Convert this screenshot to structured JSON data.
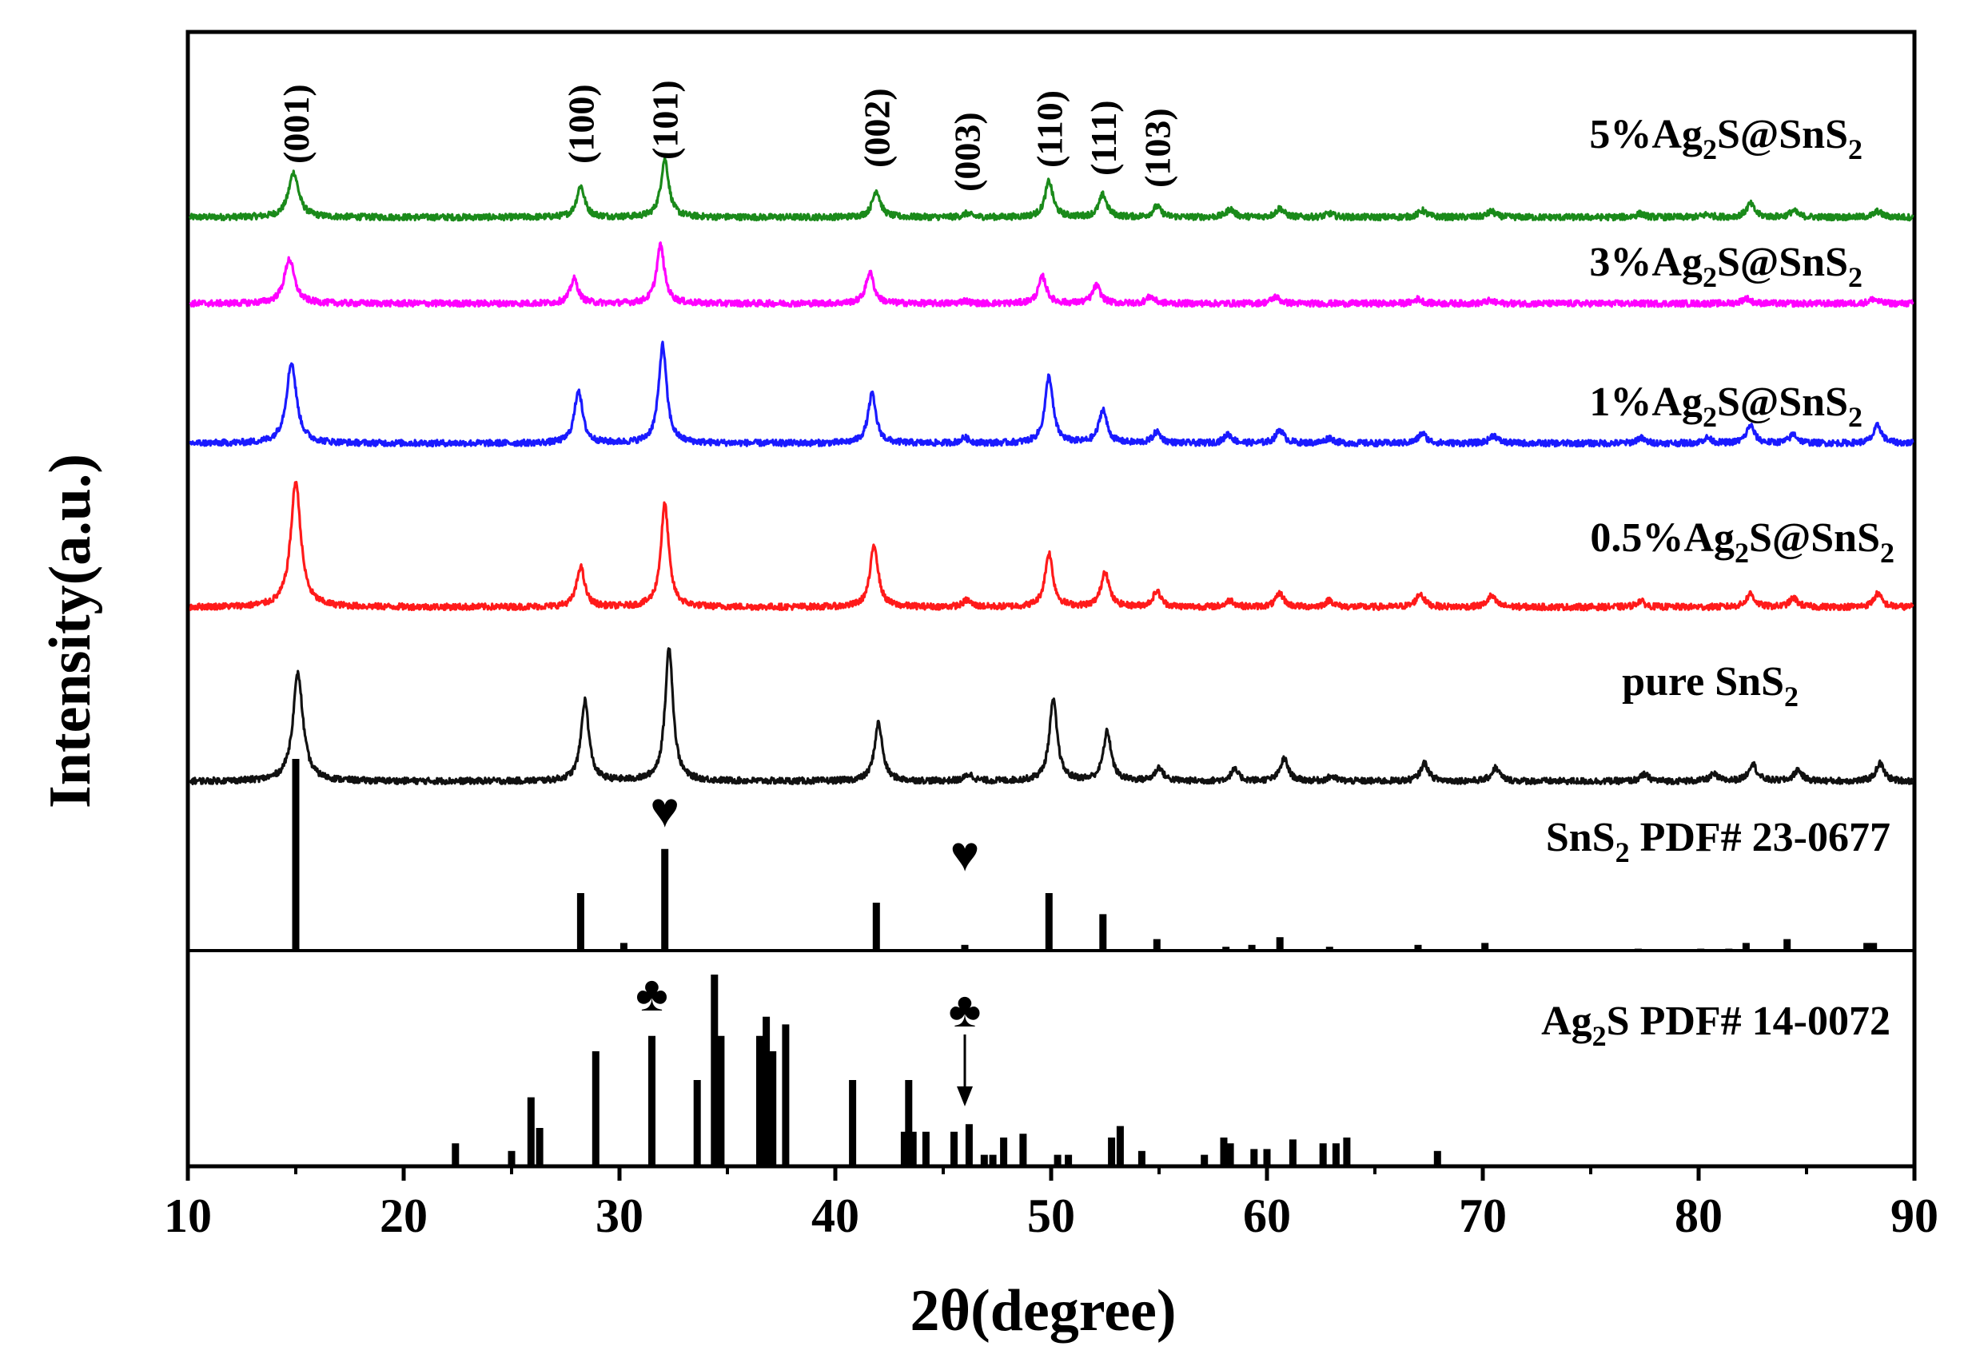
{
  "chart_data": {
    "type": "line",
    "title": "",
    "xlabel": "2θ(degree)",
    "ylabel": "Intensity(a.u.)",
    "xlim": [
      10,
      90
    ],
    "xticks": [
      10,
      20,
      30,
      40,
      50,
      60,
      70,
      80,
      90
    ],
    "series": [
      {
        "name": "5%Ag2S@SnS2",
        "label_parts": [
          "5%Ag",
          "2",
          "S@SnS",
          "2"
        ],
        "color": "#1a8a1a",
        "peaks": [
          [
            14.9,
            1.0
          ],
          [
            28.2,
            0.7
          ],
          [
            32.1,
            1.3
          ],
          [
            41.9,
            0.6
          ],
          [
            46.1,
            0.08
          ],
          [
            49.9,
            0.8
          ],
          [
            52.4,
            0.5
          ],
          [
            54.9,
            0.24
          ],
          [
            58.3,
            0.18
          ],
          [
            60.6,
            0.2
          ],
          [
            62.9,
            0.08
          ],
          [
            67.2,
            0.15
          ],
          [
            70.4,
            0.13
          ],
          [
            77.3,
            0.08
          ],
          [
            80.4,
            0.06
          ],
          [
            82.4,
            0.3
          ],
          [
            84.4,
            0.14
          ],
          [
            88.3,
            0.13
          ]
        ]
      },
      {
        "name": "3%Ag2S@SnS2",
        "label_parts": [
          "3%Ag",
          "2",
          "S@SnS",
          "2"
        ],
        "color": "#ff00ff",
        "peaks": [
          [
            14.7,
            1.0
          ],
          [
            27.9,
            0.55
          ],
          [
            31.9,
            1.3
          ],
          [
            41.6,
            0.7
          ],
          [
            46.0,
            0.06
          ],
          [
            49.6,
            0.6
          ],
          [
            52.1,
            0.4
          ],
          [
            54.6,
            0.15
          ],
          [
            60.4,
            0.15
          ],
          [
            67.0,
            0.1
          ],
          [
            70.3,
            0.06
          ],
          [
            82.2,
            0.12
          ],
          [
            88.1,
            0.1
          ]
        ]
      },
      {
        "name": "1%Ag2S@SnS2",
        "label_parts": [
          "1%Ag",
          "2",
          "S@SnS",
          "2"
        ],
        "color": "#1a1aff",
        "peaks": [
          [
            14.8,
            1.8
          ],
          [
            28.1,
            1.2
          ],
          [
            32.0,
            2.2
          ],
          [
            41.7,
            1.1
          ],
          [
            46.0,
            0.12
          ],
          [
            49.9,
            1.5
          ],
          [
            52.4,
            0.75
          ],
          [
            54.9,
            0.25
          ],
          [
            58.2,
            0.2
          ],
          [
            60.6,
            0.3
          ],
          [
            62.9,
            0.12
          ],
          [
            67.2,
            0.22
          ],
          [
            70.5,
            0.18
          ],
          [
            77.3,
            0.12
          ],
          [
            80.4,
            0.12
          ],
          [
            82.4,
            0.4
          ],
          [
            84.4,
            0.2
          ],
          [
            88.3,
            0.4
          ]
        ]
      },
      {
        "name": "0.5%Ag2S@SnS2",
        "label_parts": [
          "0.5%Ag",
          "2",
          "S@SnS",
          "2"
        ],
        "color": "#ff1a1a",
        "peaks": [
          [
            15.0,
            2.8
          ],
          [
            28.2,
            0.9
          ],
          [
            32.1,
            2.3
          ],
          [
            41.8,
            1.4
          ],
          [
            46.1,
            0.15
          ],
          [
            49.9,
            1.2
          ],
          [
            52.5,
            0.8
          ],
          [
            54.9,
            0.35
          ],
          [
            58.3,
            0.15
          ],
          [
            60.6,
            0.3
          ],
          [
            62.9,
            0.15
          ],
          [
            67.1,
            0.3
          ],
          [
            70.4,
            0.25
          ],
          [
            77.3,
            0.14
          ],
          [
            82.4,
            0.3
          ],
          [
            84.4,
            0.2
          ],
          [
            88.3,
            0.3
          ]
        ]
      },
      {
        "name": "pure SnS2",
        "label_parts": [
          "pure SnS",
          "2",
          "",
          ""
        ],
        "color": "#111111",
        "peaks": [
          [
            15.1,
            2.4
          ],
          [
            28.4,
            1.8
          ],
          [
            32.3,
            3.0
          ],
          [
            42.0,
            1.3
          ],
          [
            46.2,
            0.15
          ],
          [
            50.1,
            1.8
          ],
          [
            52.6,
            1.1
          ],
          [
            55.0,
            0.3
          ],
          [
            58.5,
            0.25
          ],
          [
            60.8,
            0.5
          ],
          [
            63.0,
            0.1
          ],
          [
            67.3,
            0.4
          ],
          [
            70.6,
            0.3
          ],
          [
            77.5,
            0.15
          ],
          [
            80.7,
            0.15
          ],
          [
            82.5,
            0.4
          ],
          [
            84.6,
            0.25
          ],
          [
            88.4,
            0.4
          ]
        ]
      }
    ],
    "hkl_labels": [
      {
        "text": "(001)",
        "x": 15.0
      },
      {
        "text": "(100)",
        "x": 28.2
      },
      {
        "text": "(101)",
        "x": 32.1
      },
      {
        "text": "(002)",
        "x": 41.9
      },
      {
        "text": "(003)",
        "x": 46.1
      },
      {
        "text": "(110)",
        "x": 49.9
      },
      {
        "text": "(111)",
        "x": 52.4
      },
      {
        "text": "(103)",
        "x": 54.9
      }
    ],
    "references": [
      {
        "name": "SnS2 PDF# 23-0677",
        "label_parts": [
          "SnS",
          "2",
          " PDF# 23-0677"
        ],
        "markers": [
          {
            "symbol": "♥",
            "x": 32.1
          },
          {
            "symbol": "♥",
            "x": 46.0
          }
        ],
        "lines": [
          [
            15.0,
            100
          ],
          [
            28.2,
            30
          ],
          [
            30.2,
            4
          ],
          [
            32.1,
            53
          ],
          [
            41.9,
            25
          ],
          [
            46.0,
            3
          ],
          [
            49.9,
            30
          ],
          [
            52.4,
            19
          ],
          [
            54.9,
            6
          ],
          [
            58.1,
            2
          ],
          [
            59.3,
            3
          ],
          [
            60.6,
            7
          ],
          [
            62.9,
            2
          ],
          [
            67.0,
            3
          ],
          [
            70.1,
            4
          ],
          [
            77.2,
            1
          ],
          [
            80.1,
            1
          ],
          [
            81.4,
            1
          ],
          [
            82.2,
            4
          ],
          [
            84.1,
            6
          ],
          [
            87.8,
            4
          ],
          [
            88.1,
            4
          ]
        ]
      },
      {
        "name": "Ag2S PDF# 14-0072",
        "label_parts": [
          "Ag",
          "2",
          "S PDF# 14-0072"
        ],
        "markers": [
          {
            "symbol": "♣",
            "x": 31.5
          },
          {
            "symbol": "♣",
            "x": 46.0
          }
        ],
        "lines": [
          [
            22.4,
            12
          ],
          [
            25.0,
            8
          ],
          [
            25.9,
            36
          ],
          [
            26.3,
            20
          ],
          [
            28.9,
            60
          ],
          [
            31.5,
            68
          ],
          [
            33.6,
            45
          ],
          [
            34.4,
            100
          ],
          [
            34.7,
            68
          ],
          [
            36.5,
            68
          ],
          [
            36.8,
            78
          ],
          [
            37.1,
            60
          ],
          [
            37.7,
            74
          ],
          [
            40.8,
            45
          ],
          [
            43.2,
            18
          ],
          [
            43.4,
            45
          ],
          [
            43.6,
            18
          ],
          [
            44.2,
            18
          ],
          [
            45.5,
            18
          ],
          [
            46.2,
            22
          ],
          [
            46.9,
            6
          ],
          [
            47.3,
            6
          ],
          [
            47.8,
            15
          ],
          [
            48.7,
            17
          ],
          [
            50.3,
            6
          ],
          [
            50.8,
            6
          ],
          [
            52.8,
            15
          ],
          [
            53.2,
            21
          ],
          [
            54.2,
            8
          ],
          [
            57.1,
            6
          ],
          [
            58.0,
            15
          ],
          [
            58.3,
            12
          ],
          [
            59.4,
            9
          ],
          [
            60.0,
            9
          ],
          [
            61.2,
            14
          ],
          [
            62.6,
            12
          ],
          [
            63.2,
            12
          ],
          [
            63.7,
            15
          ],
          [
            67.9,
            8
          ]
        ]
      }
    ],
    "arrow_annotation": {
      "x": 46.0
    }
  }
}
